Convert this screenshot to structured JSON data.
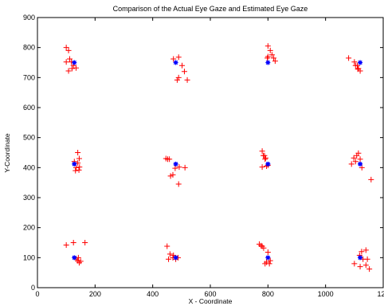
{
  "chart_data": {
    "type": "scatter",
    "title": "Comparison of the Actual Eye Gaze and Estimated Eye Gaze",
    "xlabel": "X - Coordinate",
    "ylabel": "Y-Coordinate",
    "xlim": [
      0,
      1200
    ],
    "ylim": [
      0,
      900
    ],
    "xticks": [
      "0",
      "200",
      "400",
      "600",
      "800",
      "1000",
      "120"
    ],
    "yticks": [
      "0",
      "100",
      "200",
      "300",
      "400",
      "500",
      "600",
      "700",
      "800",
      "900"
    ],
    "grid": false,
    "legend": "none",
    "series": [
      {
        "marker": "+",
        "color": "#ff0000",
        "points": [
          [
            100,
            800
          ],
          [
            108,
            790
          ],
          [
            112,
            762
          ],
          [
            100,
            752
          ],
          [
            125,
            740
          ],
          [
            120,
            730
          ],
          [
            108,
            722
          ],
          [
            134,
            732
          ],
          [
            118,
            752
          ],
          [
            490,
            768
          ],
          [
            502,
            740
          ],
          [
            510,
            720
          ],
          [
            520,
            692
          ],
          [
            490,
            700
          ],
          [
            485,
            692
          ],
          [
            472,
            762
          ],
          [
            800,
            805
          ],
          [
            808,
            790
          ],
          [
            814,
            776
          ],
          [
            800,
            770
          ],
          [
            820,
            765
          ],
          [
            825,
            755
          ],
          [
            798,
            765
          ],
          [
            1080,
            765
          ],
          [
            1100,
            752
          ],
          [
            1110,
            740
          ],
          [
            1114,
            730
          ],
          [
            1120,
            722
          ],
          [
            1104,
            740
          ],
          [
            1112,
            728
          ],
          [
            140,
            450
          ],
          [
            145,
            430
          ],
          [
            140,
            415
          ],
          [
            134,
            400
          ],
          [
            132,
            390
          ],
          [
            146,
            402
          ],
          [
            128,
            420
          ],
          [
            144,
            392
          ],
          [
            446,
            430
          ],
          [
            452,
            428
          ],
          [
            478,
            398
          ],
          [
            470,
            376
          ],
          [
            462,
            372
          ],
          [
            492,
            402
          ],
          [
            512,
            400
          ],
          [
            490,
            345
          ],
          [
            458,
            428
          ],
          [
            780,
            455
          ],
          [
            788,
            440
          ],
          [
            790,
            428
          ],
          [
            795,
            405
          ],
          [
            780,
            402
          ],
          [
            800,
            408
          ],
          [
            784,
            440
          ],
          [
            792,
            432
          ],
          [
            1090,
            412
          ],
          [
            1098,
            432
          ],
          [
            1108,
            440
          ],
          [
            1114,
            448
          ],
          [
            1120,
            428
          ],
          [
            1126,
            400
          ],
          [
            1158,
            360
          ],
          [
            1104,
            420
          ],
          [
            100,
            142
          ],
          [
            125,
            150
          ],
          [
            165,
            150
          ],
          [
            135,
            95
          ],
          [
            140,
            90
          ],
          [
            150,
            88
          ],
          [
            145,
            83
          ],
          [
            142,
            100
          ],
          [
            450,
            138
          ],
          [
            460,
            112
          ],
          [
            470,
            100
          ],
          [
            480,
            95
          ],
          [
            455,
            95
          ],
          [
            488,
            100
          ],
          [
            472,
            108
          ],
          [
            770,
            145
          ],
          [
            776,
            140
          ],
          [
            785,
            132
          ],
          [
            780,
            138
          ],
          [
            790,
            80
          ],
          [
            795,
            85
          ],
          [
            805,
            80
          ],
          [
            808,
            90
          ],
          [
            800,
            118
          ],
          [
            1100,
            80
          ],
          [
            1125,
            120
          ],
          [
            1140,
            125
          ],
          [
            1130,
            95
          ],
          [
            1145,
            95
          ],
          [
            1140,
            75
          ],
          [
            1152,
            62
          ],
          [
            1120,
            70
          ],
          [
            1118,
            108
          ]
        ]
      },
      {
        "marker": "*",
        "color": "#0000ff",
        "points": [
          [
            128,
            750
          ],
          [
            480,
            750
          ],
          [
            800,
            750
          ],
          [
            1120,
            750
          ],
          [
            128,
            412
          ],
          [
            480,
            412
          ],
          [
            800,
            412
          ],
          [
            1120,
            412
          ],
          [
            128,
            100
          ],
          [
            480,
            100
          ],
          [
            800,
            100
          ],
          [
            1120,
            100
          ]
        ]
      }
    ]
  }
}
